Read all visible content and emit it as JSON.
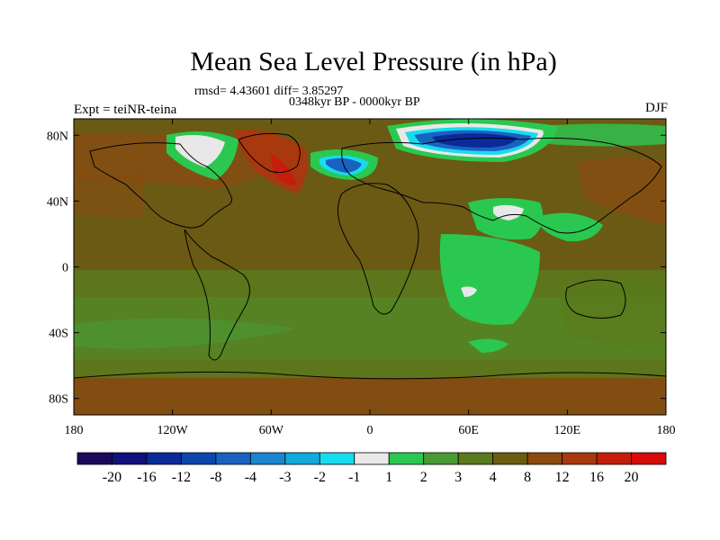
{
  "header": {
    "title": "Mean Sea Level Pressure (in hPa)",
    "stats": "rmsd= 4.43601 diff= 3.85297",
    "period": "0348kyr BP - 0000kyr BP",
    "experiment": "Expt = teiNR-teina",
    "season": "DJF"
  },
  "axes": {
    "x_ticks": [
      "180",
      "120W",
      "60W",
      "0",
      "60E",
      "120E",
      "180"
    ],
    "y_ticks": [
      "80N",
      "40N",
      "0",
      "40S",
      "80S"
    ]
  },
  "colorbar": {
    "labels": [
      "-20",
      "-16",
      "-12",
      "-8",
      "-4",
      "-3",
      "-2",
      "-1",
      "1",
      "2",
      "3",
      "4",
      "8",
      "12",
      "16",
      "20"
    ],
    "colors": [
      "#1a0a5c",
      "#10107e",
      "#0a2a9a",
      "#0a46ac",
      "#1a62c0",
      "#1a86d0",
      "#10aadc",
      "#18dcee",
      "#e8e8e8",
      "#2ac850",
      "#4a9a34",
      "#5a7a1c",
      "#6a5c10",
      "#8a4a10",
      "#a8380e",
      "#c41e0a",
      "#d80a0a"
    ]
  },
  "map": {
    "background_color": "#6b5a14",
    "land_outline_color": "#000000"
  }
}
